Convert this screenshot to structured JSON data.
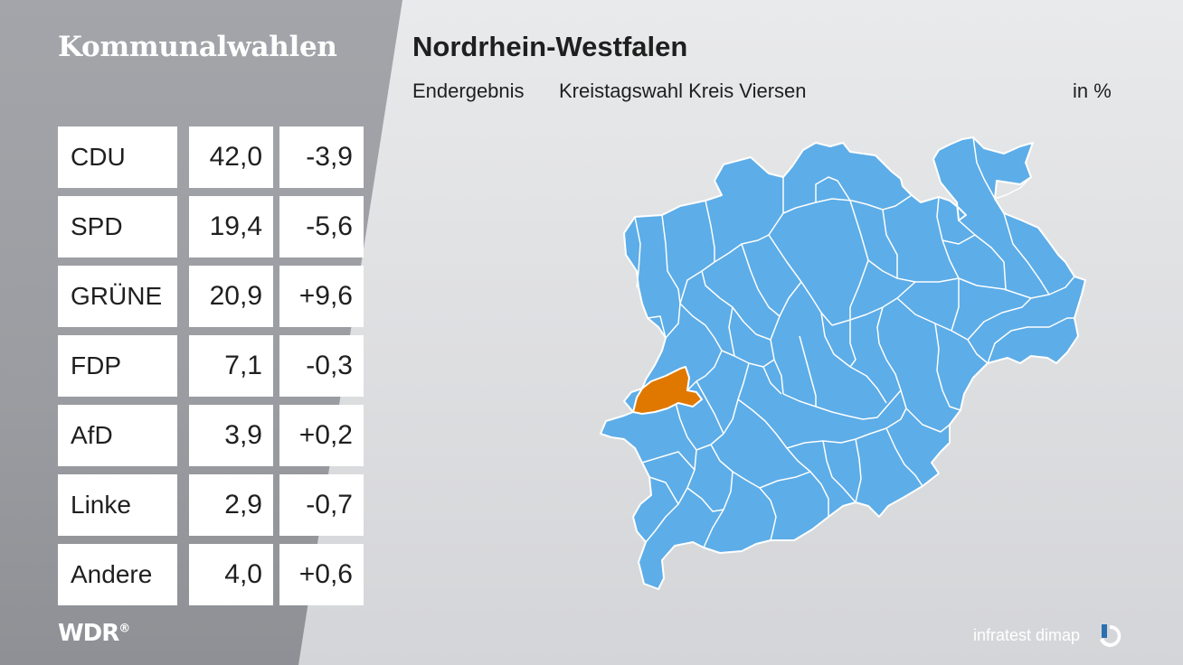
{
  "header": {
    "section_title": "Kommunalwahlen",
    "state_title": "Nordrhein-Westfalen",
    "result_type": "Endergebnis",
    "election": "Kreistagswahl Kreis Viersen",
    "unit": "in %"
  },
  "chart_data": {
    "type": "table",
    "columns": [
      "party",
      "share",
      "change"
    ],
    "rows": [
      {
        "party": "CDU",
        "share": "42,0",
        "change": "-3,9"
      },
      {
        "party": "SPD",
        "share": "19,4",
        "change": "-5,6"
      },
      {
        "party": "GRÜNE",
        "share": "20,9",
        "change": "+9,6"
      },
      {
        "party": "FDP",
        "share": "7,1",
        "change": "-0,3"
      },
      {
        "party": "AfD",
        "share": "3,9",
        "change": "+0,2"
      },
      {
        "party": "Linke",
        "share": "2,9",
        "change": "-0,7"
      },
      {
        "party": "Andere",
        "share": "4,0",
        "change": "+0,6"
      }
    ]
  },
  "map": {
    "region_color": "#5dade8",
    "highlight_color": "#e07800",
    "border_color": "#ffffff"
  },
  "footer": {
    "broadcaster": "WDR",
    "broadcaster_mark": "®",
    "pollster": "infratest dimap"
  }
}
